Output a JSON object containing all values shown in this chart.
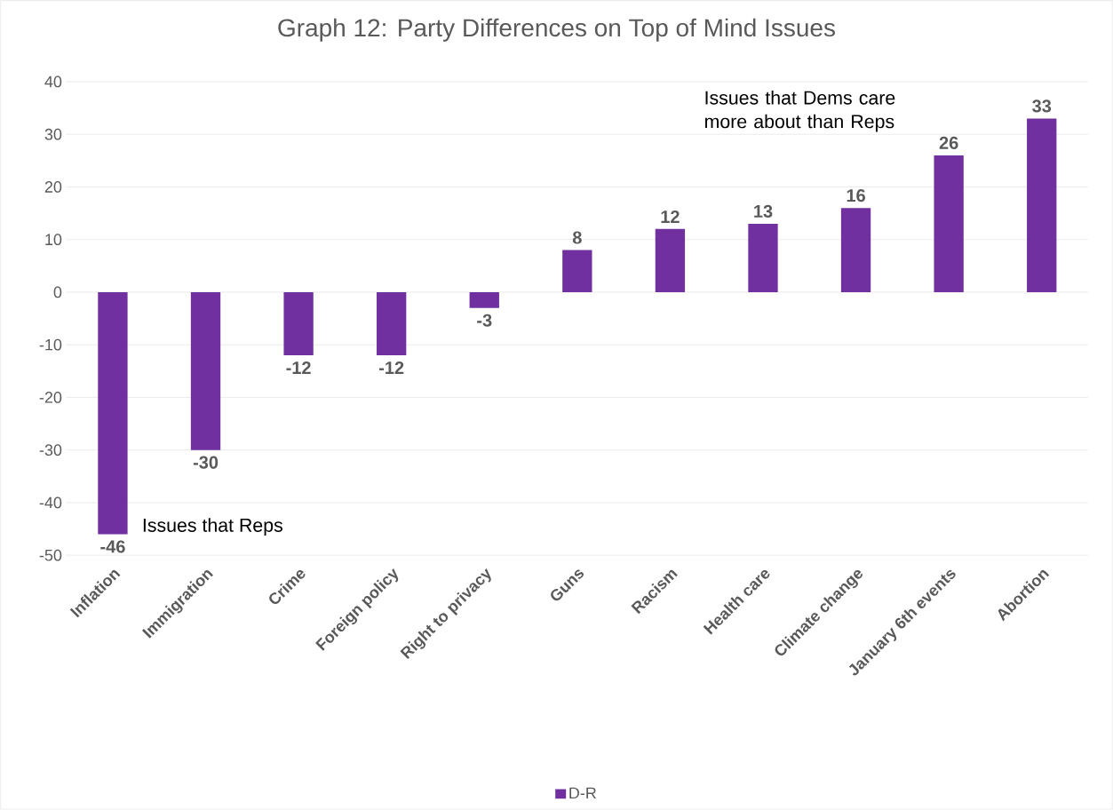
{
  "chart_data": {
    "type": "bar",
    "title": "Graph 12: Party Differences on Top of Mind Issues",
    "categories": [
      "Inflation",
      "Immigration",
      "Crime",
      "Foreign policy",
      "Right to privacy",
      "Guns",
      "Racism",
      "Health care",
      "Climate change",
      "January 6th events",
      "Abortion"
    ],
    "series": [
      {
        "name": "D-R",
        "color": "#7030a0",
        "values": [
          -46,
          -30,
          -12,
          -12,
          -3,
          8,
          12,
          13,
          16,
          26,
          33
        ]
      }
    ],
    "data_labels": true,
    "ylim": [
      -50,
      40
    ],
    "yticks": [
      -50,
      -40,
      -30,
      -20,
      -10,
      0,
      10,
      20,
      30,
      40
    ],
    "grid": "y",
    "legend": "bottom",
    "annotations": [
      "Issues that Dems care more about than Reps",
      "Issues that Reps"
    ]
  }
}
